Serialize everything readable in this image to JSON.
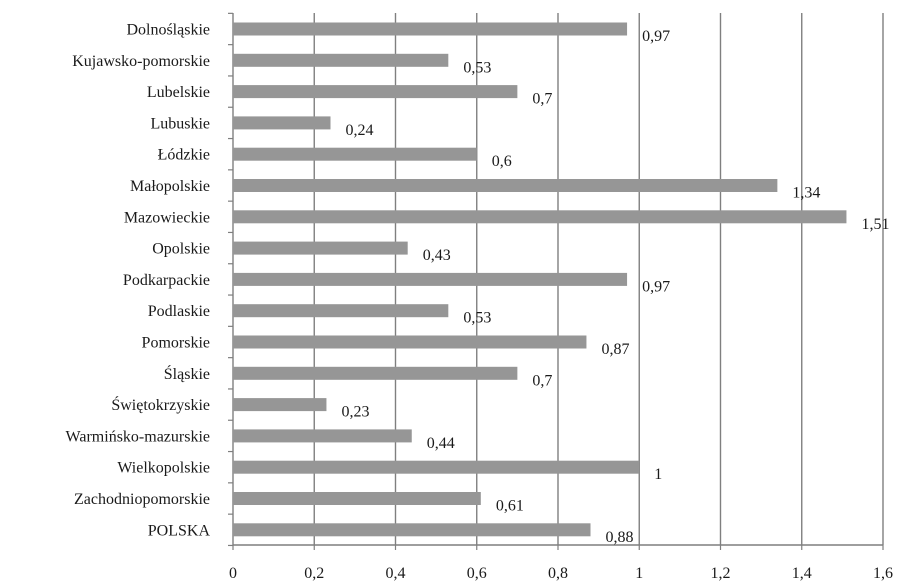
{
  "chart_data": {
    "type": "bar",
    "orientation": "horizontal",
    "categories": [
      "Dolnośląskie",
      "Kujawsko-pomorskie",
      "Lubelskie",
      "Lubuskie",
      "Łódzkie",
      "Małopolskie",
      "Mazowieckie",
      "Opolskie",
      "Podkarpackie",
      "Podlaskie",
      "Pomorskie",
      "Śląskie",
      "Świętokrzyskie",
      "Warmińsko-mazurskie",
      "Wielkopolskie",
      "Zachodniopomorskie",
      "POLSKA"
    ],
    "values": [
      0.97,
      0.53,
      0.7,
      0.24,
      0.6,
      1.34,
      1.51,
      0.43,
      0.97,
      0.53,
      0.87,
      0.7,
      0.23,
      0.44,
      1,
      0.61,
      0.88
    ],
    "value_labels": [
      "0,97",
      "0,53",
      "0,7",
      "0,24",
      "0,6",
      "1,34",
      "1,51",
      "0,43",
      "0,97",
      "0,53",
      "0,87",
      "0,7",
      "0,23",
      "0,44",
      "1",
      "0,61",
      "0,88"
    ],
    "x_ticks": [
      "0",
      "0,2",
      "0,4",
      "0,6",
      "0,8",
      "1",
      "1,2",
      "1,4",
      "1,6"
    ],
    "xlim": [
      0,
      1.6
    ],
    "grid": "vertical major gridlines",
    "legend": "none",
    "bar_color": "#969696",
    "grid_color": "#7f7f7f"
  }
}
